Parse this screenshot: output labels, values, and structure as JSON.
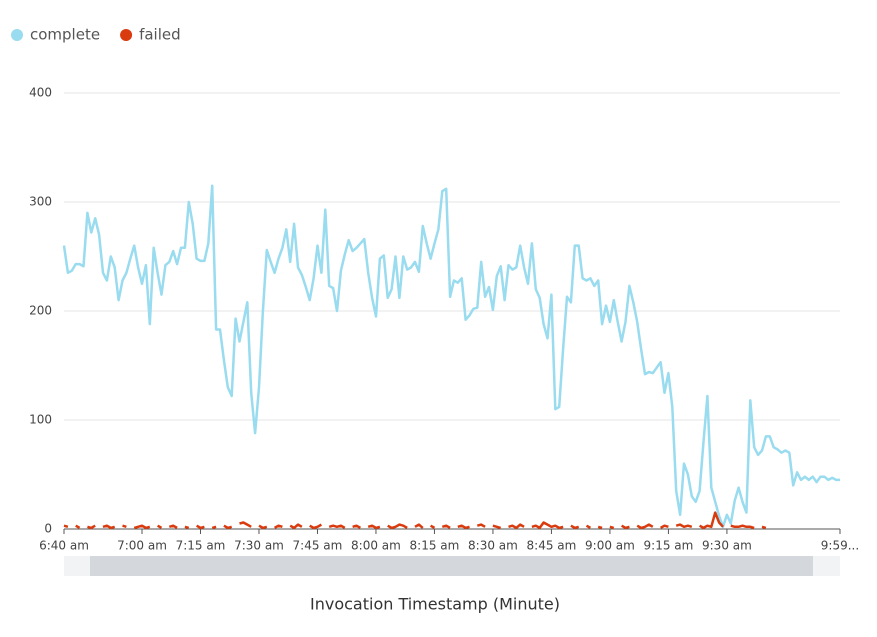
{
  "chart_data": {
    "type": "line",
    "x_label": "Invocation Timestamp (Minute)",
    "categories": [
      "6:40 am",
      null,
      null,
      null,
      null,
      null,
      null,
      null,
      null,
      null,
      null,
      null,
      null,
      null,
      null,
      null,
      null,
      null,
      null,
      null,
      "7:00 am",
      null,
      null,
      null,
      null,
      null,
      null,
      null,
      null,
      null,
      null,
      null,
      null,
      null,
      null,
      "7:15 am",
      null,
      null,
      null,
      null,
      null,
      null,
      null,
      null,
      null,
      null,
      null,
      null,
      null,
      null,
      "7:30 am",
      null,
      null,
      null,
      null,
      null,
      null,
      null,
      null,
      null,
      null,
      null,
      null,
      null,
      null,
      "7:45 am",
      null,
      null,
      null,
      null,
      null,
      null,
      null,
      null,
      null,
      null,
      null,
      null,
      null,
      null,
      "8:00 am",
      null,
      null,
      null,
      null,
      null,
      null,
      null,
      null,
      null,
      null,
      null,
      null,
      null,
      null,
      "8:15 am",
      null,
      null,
      null,
      null,
      null,
      null,
      null,
      null,
      null,
      null,
      null,
      null,
      null,
      null,
      "8:30 am",
      null,
      null,
      null,
      null,
      null,
      null,
      null,
      null,
      null,
      null,
      null,
      null,
      null,
      null,
      "8:45 am",
      null,
      null,
      null,
      null,
      null,
      null,
      null,
      null,
      null,
      null,
      null,
      null,
      null,
      null,
      "9:00 am",
      null,
      null,
      null,
      null,
      null,
      null,
      null,
      null,
      null,
      null,
      null,
      null,
      null,
      null,
      "9:15 am",
      null,
      null,
      null,
      null,
      null,
      null,
      null,
      null,
      null,
      null,
      null,
      null,
      null,
      null,
      "9:30 am",
      null,
      null,
      null,
      null,
      null,
      null,
      null,
      null,
      null,
      null,
      null,
      null,
      null,
      null,
      null,
      null,
      null,
      null,
      null,
      null,
      null,
      null,
      null,
      null,
      null,
      null,
      null,
      null,
      "9:59..."
    ],
    "series": [
      {
        "name": "complete",
        "color": "#99dbef",
        "values": [
          260,
          235,
          237,
          243,
          243,
          241,
          290,
          272,
          285,
          270,
          235,
          228,
          250,
          240,
          210,
          228,
          235,
          248,
          260,
          240,
          225,
          242,
          188,
          258,
          235,
          215,
          242,
          245,
          255,
          243,
          258,
          258,
          300,
          280,
          248,
          246,
          246,
          262,
          315,
          183,
          183,
          155,
          130,
          122,
          193,
          172,
          190,
          208,
          125,
          88,
          130,
          200,
          256,
          245,
          235,
          248,
          258,
          275,
          245,
          280,
          240,
          233,
          222,
          210,
          230,
          260,
          235,
          293,
          223,
          221,
          200,
          237,
          252,
          265,
          255,
          258,
          262,
          266,
          235,
          212,
          195,
          248,
          251,
          212,
          220,
          250,
          212,
          250,
          238,
          240,
          245,
          236,
          278,
          262,
          248,
          262,
          275,
          310,
          312,
          213,
          228,
          226,
          230,
          192,
          196,
          202,
          203,
          245,
          213,
          222,
          201,
          232,
          241,
          210,
          242,
          238,
          240,
          260,
          240,
          225,
          262,
          220,
          212,
          188,
          175,
          215,
          110,
          112,
          165,
          213,
          208,
          260,
          260,
          230,
          228,
          230,
          223,
          228,
          188,
          205,
          190,
          210,
          190,
          172,
          190,
          223,
          208,
          190,
          165,
          142,
          144,
          143,
          148,
          153,
          125,
          143,
          112,
          35,
          13,
          60,
          50,
          30,
          25,
          35,
          80,
          122,
          38,
          25,
          12,
          2,
          13,
          5,
          26,
          38,
          25,
          15,
          118,
          75,
          68,
          72,
          85,
          85,
          75,
          73,
          70,
          72,
          70,
          40,
          52,
          45,
          48,
          45,
          48,
          43,
          48,
          48,
          45,
          47,
          45,
          45
        ]
      },
      {
        "name": "failed",
        "color": "#d93b0e",
        "values": [
          3,
          2,
          null,
          3,
          1,
          null,
          2,
          1,
          3,
          null,
          2,
          3,
          1,
          2,
          null,
          3,
          2,
          null,
          1,
          2,
          3,
          1,
          2,
          null,
          3,
          1,
          null,
          2,
          3,
          1,
          null,
          2,
          1,
          null,
          3,
          1,
          2,
          null,
          1,
          2,
          null,
          3,
          1,
          2,
          null,
          5,
          6,
          4,
          2,
          null,
          3,
          1,
          2,
          null,
          1,
          3,
          2,
          null,
          3,
          1,
          4,
          2,
          null,
          3,
          1,
          2,
          4,
          null,
          2,
          3,
          2,
          3,
          1,
          null,
          2,
          3,
          1,
          null,
          2,
          3,
          1,
          2,
          null,
          3,
          1,
          2,
          4,
          3,
          1,
          null,
          2,
          4,
          1,
          null,
          3,
          1,
          null,
          2,
          3,
          1,
          null,
          2,
          3,
          1,
          2,
          null,
          3,
          4,
          2,
          null,
          3,
          2,
          1,
          null,
          2,
          3,
          1,
          4,
          2,
          null,
          2,
          3,
          1,
          6,
          4,
          2,
          3,
          1,
          2,
          null,
          3,
          1,
          2,
          null,
          3,
          1,
          null,
          2,
          1,
          null,
          2,
          1,
          null,
          3,
          1,
          2,
          null,
          3,
          1,
          2,
          4,
          2,
          null,
          1,
          3,
          2,
          null,
          3,
          4,
          2,
          3,
          2,
          null,
          3,
          1,
          3,
          2,
          15,
          6,
          2,
          null,
          3,
          2,
          2,
          3,
          2,
          2,
          1,
          null,
          2,
          1,
          null,
          2,
          null,
          1,
          null,
          2,
          null,
          1,
          null,
          null,
          2,
          null,
          null,
          null,
          null,
          null,
          null,
          null,
          null
        ]
      }
    ],
    "ylim": [
      0,
      400
    ],
    "yticks": [
      0,
      100,
      200,
      300,
      400
    ],
    "grid": true
  }
}
